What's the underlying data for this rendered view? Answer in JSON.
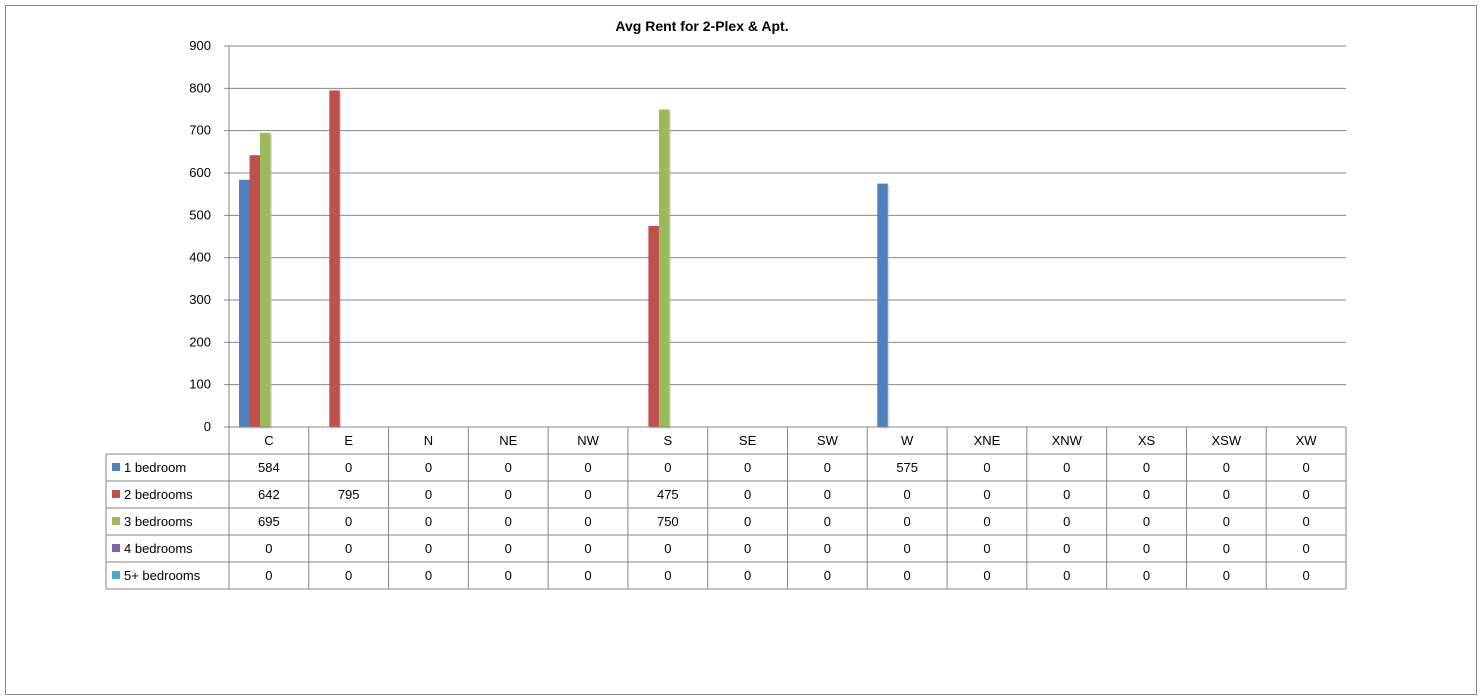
{
  "chart_data": {
    "type": "bar",
    "title": "Avg Rent for 2-Plex & Apt.",
    "xlabel": "",
    "ylabel": "",
    "ylim": [
      0,
      900
    ],
    "yticks": [
      0,
      100,
      200,
      300,
      400,
      500,
      600,
      700,
      800,
      900
    ],
    "grid": true,
    "legend_placement": "data-table",
    "categories": [
      "C",
      "E",
      "N",
      "NE",
      "NW",
      "S",
      "SE",
      "SW",
      "W",
      "XNE",
      "XNW",
      "XS",
      "XSW",
      "XW"
    ],
    "series": [
      {
        "name": "1 bedroom",
        "color": "#4f81bd",
        "values": [
          584,
          0,
          0,
          0,
          0,
          0,
          0,
          0,
          575,
          0,
          0,
          0,
          0,
          0
        ]
      },
      {
        "name": "2 bedrooms",
        "color": "#c0504d",
        "values": [
          642,
          795,
          0,
          0,
          0,
          475,
          0,
          0,
          0,
          0,
          0,
          0,
          0,
          0
        ]
      },
      {
        "name": "3 bedrooms",
        "color": "#9bbb59",
        "values": [
          695,
          0,
          0,
          0,
          0,
          750,
          0,
          0,
          0,
          0,
          0,
          0,
          0,
          0
        ]
      },
      {
        "name": "4 bedrooms",
        "color": "#8064a2",
        "values": [
          0,
          0,
          0,
          0,
          0,
          0,
          0,
          0,
          0,
          0,
          0,
          0,
          0,
          0
        ]
      },
      {
        "name": "5+ bedrooms",
        "color": "#4bacc6",
        "values": [
          0,
          0,
          0,
          0,
          0,
          0,
          0,
          0,
          0,
          0,
          0,
          0,
          0,
          0
        ]
      }
    ]
  }
}
